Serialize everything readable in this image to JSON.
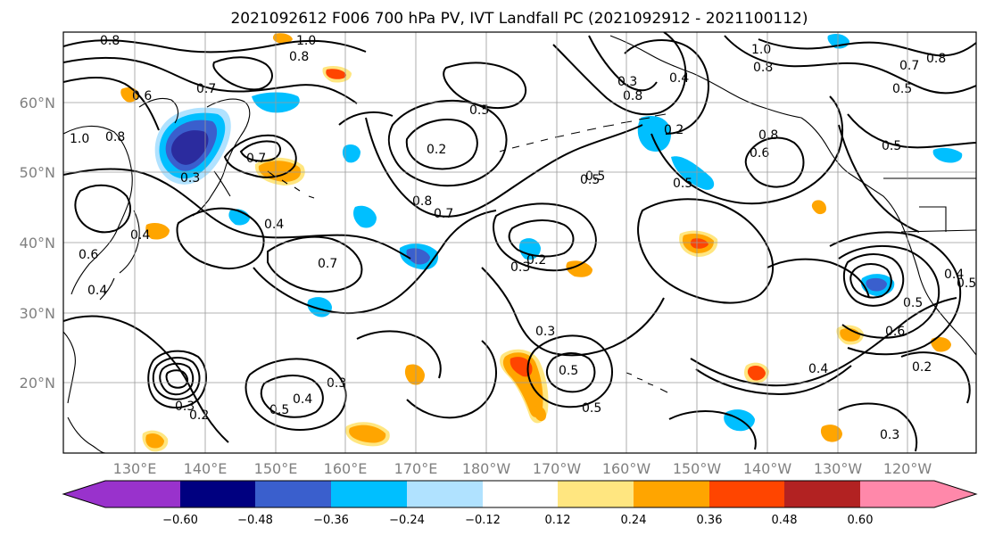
{
  "title": "2021092612 F006 700 hPa PV, IVT Landfall PC (2021092912 - 2021100112)",
  "map": {
    "lat_labels": [
      "60°N",
      "50°N",
      "40°N",
      "30°N",
      "20°N"
    ],
    "lon_labels": [
      "130°E",
      "140°E",
      "150°E",
      "160°E",
      "170°E",
      "180°W",
      "170°W",
      "160°W",
      "150°W",
      "140°W",
      "130°W",
      "120°W"
    ],
    "contour_labels": [
      "0.8",
      "1.0",
      "0.8",
      "0.6",
      "0.7",
      "1.0",
      "0.8",
      "0.7",
      "0.7",
      "0.3",
      "0.4",
      "0.4",
      "0.6",
      "0.4",
      "0.7",
      "0.5",
      "0.2",
      "0.8",
      "0.5",
      "0.2",
      "0.8",
      "0.5",
      "0.3",
      "0.2",
      "0.3",
      "0.5",
      "0.5",
      "0.3",
      "0.4",
      "0.6",
      "0.5",
      "0.5",
      "0.8",
      "0.3",
      "0.4",
      "0.3",
      "0.2",
      "0.5",
      "0.4",
      "0.6",
      "0.5",
      "0.7",
      "0.8",
      "0.5",
      "0.5",
      "1.0",
      "0.8",
      "0.4",
      "0.2",
      "0.3"
    ]
  },
  "colorbar": {
    "ticks": [
      "−0.60",
      "−0.48",
      "−0.36",
      "−0.24",
      "−0.12",
      "0.12",
      "0.24",
      "0.36",
      "0.48",
      "0.60"
    ],
    "colors": [
      "#9932cc",
      "#000080",
      "#3a5fcd",
      "#00bfff",
      "#b0e2ff",
      "#ffffff",
      "#ffe680",
      "#ffa500",
      "#ff4500",
      "#b22222",
      "#ff88aa"
    ]
  },
  "colors": {
    "neg_dark": "#2b2b9e",
    "neg_mid": "#3a5fcd",
    "neg_light": "#00bfff",
    "neg_pale": "#b0e2ff",
    "pos_pale": "#ffe680",
    "pos_mid": "#ffa500",
    "pos_strong": "#ff4500"
  }
}
